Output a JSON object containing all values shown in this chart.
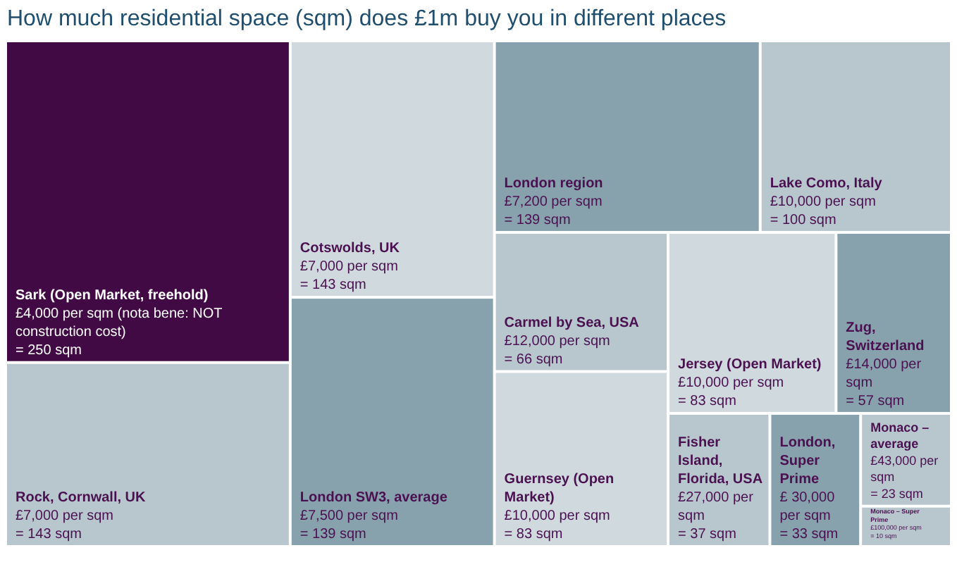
{
  "chart_data": {
    "type": "other",
    "title": "How much residential space (sqm) does £1m buy you in different places",
    "categories": [
      "Sark (Open Market, freehold)",
      "Rock, Cornwall, UK",
      "Cotswolds, UK",
      "London SW3, average",
      "London region",
      "Lake Como, Italy",
      "Carmel by Sea, USA",
      "Guernsey (Open Market)",
      "Jersey (Open Market)",
      "Zug, Switzerland",
      "Fisher Island, Florida, USA",
      "London, Super Prime",
      "Monaco – average",
      "Monaco – Super Prime"
    ],
    "values": [
      250,
      143,
      143,
      139,
      139,
      100,
      66,
      83,
      83,
      57,
      37,
      33,
      23,
      10
    ],
    "value_labels": [
      "£4,000 per sqm (nota bene: NOT construction cost)\n= 250 sqm",
      "£7,000 per sqm\n= 143 sqm",
      "£7,000 per sqm\n= 143 sqm",
      "£7,500 per sqm\n= 139 sqm",
      "£7,200 per sqm\n= 139 sqm",
      "£10,000 per sqm\n= 100 sqm",
      "£12,000 per sqm\n= 66 sqm",
      "£10,000 per sqm\n= 83 sqm",
      "£10,000 per sqm\n= 83 sqm",
      "£14,000 per sqm\n= 57 sqm",
      "£27,000 per sqm\n= 37 sqm",
      "£ 30,000 per sqm\n= 33 sqm",
      "£43,000 per sqm\n= 23 sqm",
      "£100,000 per sqm\n= 10 sqm"
    ],
    "colors": [
      "#420a45",
      "#b8c7ce",
      "#d0d9de",
      "#87a2ad",
      "#87a2ad",
      "#b8c7ce",
      "#b8c7ce",
      "#d0d9de",
      "#d0d9de",
      "#87a2ad",
      "#b8c7ce",
      "#87a2ad",
      "#b8c7ce",
      "#b8c7ce"
    ]
  }
}
